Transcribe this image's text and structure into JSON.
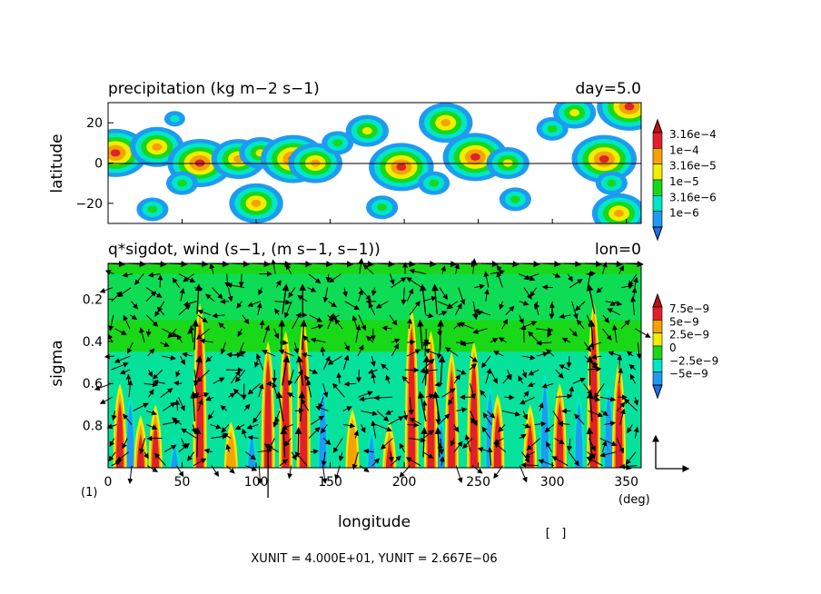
{
  "chart_data": [
    {
      "type": "heatmap",
      "title": "precipitation (kg m−2 s−1)",
      "annotation": "day=5.0",
      "ylabel": "latitude",
      "xlim": [
        0,
        360
      ],
      "ylim": [
        -30,
        30
      ],
      "yticks": [
        {
          "value": 20,
          "label": "20"
        },
        {
          "value": 0,
          "label": "0"
        },
        {
          "value": -20,
          "label": "−20"
        }
      ],
      "grid": false,
      "colorbar": {
        "position": "right",
        "levels": [
          {
            "label": "3.16e−4",
            "color": "#e0202a"
          },
          {
            "label": "1e−4",
            "color": "#f5a300"
          },
          {
            "label": "3.16e−5",
            "color": "#f2ee00"
          },
          {
            "label": "1e−5",
            "color": "#18d818"
          },
          {
            "label": "3.16e−6",
            "color": "#00e6c8"
          },
          {
            "label": "1e−6",
            "color": "#1e9bf0"
          }
        ],
        "top_color": "#c01010",
        "bottom_color": "#1e6ee8",
        "below_min_color": "#ffffff"
      },
      "cells": [
        {
          "lon": 5,
          "lat": 5,
          "value": "3.16e−4"
        },
        {
          "lon": 33,
          "lat": 8,
          "value": "1e−4"
        },
        {
          "lon": 62,
          "lat": 0,
          "value": "3.16e−4"
        },
        {
          "lon": 88,
          "lat": 2,
          "value": "1e−4"
        },
        {
          "lon": 103,
          "lat": 5,
          "value": "3.16e−5"
        },
        {
          "lon": 125,
          "lat": 2,
          "value": "3.16e−4"
        },
        {
          "lon": 140,
          "lat": 0,
          "value": "1e−4"
        },
        {
          "lon": 100,
          "lat": -20,
          "value": "1e−4"
        },
        {
          "lon": 30,
          "lat": -23,
          "value": "1e−5"
        },
        {
          "lon": 175,
          "lat": 16,
          "value": "3.16e−5"
        },
        {
          "lon": 198,
          "lat": -2,
          "value": "3.16e−4"
        },
        {
          "lon": 228,
          "lat": 20,
          "value": "1e−4"
        },
        {
          "lon": 248,
          "lat": 3,
          "value": "3.16e−4"
        },
        {
          "lon": 270,
          "lat": 0,
          "value": "3.16e−5"
        },
        {
          "lon": 300,
          "lat": 17,
          "value": "1e−5"
        },
        {
          "lon": 315,
          "lat": 25,
          "value": "3.16e−5"
        },
        {
          "lon": 335,
          "lat": 2,
          "value": "3.16e−4"
        },
        {
          "lon": 352,
          "lat": 28,
          "value": "3.16e−4"
        },
        {
          "lon": 345,
          "lat": -25,
          "value": "1e−4"
        },
        {
          "lon": 185,
          "lat": -22,
          "value": "1e−5"
        },
        {
          "lon": 275,
          "lat": -18,
          "value": "1e−5"
        },
        {
          "lon": 220,
          "lat": -10,
          "value": "1e−5"
        },
        {
          "lon": 340,
          "lat": -10,
          "value": "1e−5"
        },
        {
          "lon": 50,
          "lat": -10,
          "value": "1e−5"
        },
        {
          "lon": 155,
          "lat": 10,
          "value": "1e−5"
        },
        {
          "lon": 45,
          "lat": 22,
          "value": "3.16e−6"
        }
      ]
    },
    {
      "type": "heatmap",
      "title": "q*sigdot, wind (s−1, (m s−1, s−1))",
      "annotation": "lon=0",
      "xlabel": "longitude",
      "ylabel": "sigma",
      "xlim": [
        0,
        360
      ],
      "ylim": [
        1.0,
        0.03
      ],
      "xticks": [
        {
          "value": 0,
          "label": "0"
        },
        {
          "value": 50,
          "label": "50"
        },
        {
          "value": 100,
          "label": "100"
        },
        {
          "value": 150,
          "label": "150"
        },
        {
          "value": 200,
          "label": "200"
        },
        {
          "value": 250,
          "label": "250"
        },
        {
          "value": 300,
          "label": "300"
        },
        {
          "value": 350,
          "label": "350"
        }
      ],
      "yticks": [
        {
          "value": 0.2,
          "label": "0.2"
        },
        {
          "value": 0.4,
          "label": "0.4"
        },
        {
          "value": 0.6,
          "label": "0.6"
        },
        {
          "value": 0.8,
          "label": "0.8"
        }
      ],
      "x_unit": "(deg)",
      "y_unit": "(1)",
      "grid": false,
      "colorbar": {
        "position": "right",
        "levels": [
          {
            "label": "7.5e−9",
            "color": "#e0202a"
          },
          {
            "label": "5e−9",
            "color": "#f5a300"
          },
          {
            "label": "2.5e−9",
            "color": "#f2ee00"
          },
          {
            "label": "0",
            "color": "#18d818"
          },
          {
            "label": "−2.5e−9",
            "color": "#00e6c8"
          },
          {
            "label": "−5e−9",
            "color": "#1e9bf0"
          }
        ],
        "top_color": "#c01010",
        "bottom_color": "#1e6ee8"
      },
      "updraft_plumes": [
        {
          "lon": 8,
          "top_sigma": 0.6,
          "value": "7.5e−9"
        },
        {
          "lon": 22,
          "top_sigma": 0.75,
          "value": "7.5e−9"
        },
        {
          "lon": 32,
          "top_sigma": 0.7,
          "value": "7.5e−9"
        },
        {
          "lon": 62,
          "top_sigma": 0.22,
          "value": "7.5e−9"
        },
        {
          "lon": 83,
          "top_sigma": 0.78,
          "value": "5e−9"
        },
        {
          "lon": 108,
          "top_sigma": 0.4,
          "value": "7.5e−9"
        },
        {
          "lon": 120,
          "top_sigma": 0.35,
          "value": "7.5e−9"
        },
        {
          "lon": 132,
          "top_sigma": 0.3,
          "value": "7.5e−9"
        },
        {
          "lon": 165,
          "top_sigma": 0.72,
          "value": "5e−9"
        },
        {
          "lon": 190,
          "top_sigma": 0.78,
          "value": "7.5e−9"
        },
        {
          "lon": 205,
          "top_sigma": 0.25,
          "value": "7.5e−9"
        },
        {
          "lon": 218,
          "top_sigma": 0.35,
          "value": "7.5e−9"
        },
        {
          "lon": 232,
          "top_sigma": 0.45,
          "value": "7.5e−9"
        },
        {
          "lon": 247,
          "top_sigma": 0.4,
          "value": "7.5e−9"
        },
        {
          "lon": 263,
          "top_sigma": 0.65,
          "value": "7.5e−9"
        },
        {
          "lon": 285,
          "top_sigma": 0.7,
          "value": "7.5e−9"
        },
        {
          "lon": 305,
          "top_sigma": 0.6,
          "value": "7.5e−9"
        },
        {
          "lon": 328,
          "top_sigma": 0.22,
          "value": "7.5e−9"
        },
        {
          "lon": 345,
          "top_sigma": 0.5,
          "value": "7.5e−9"
        }
      ],
      "downdraft_plumes": [
        {
          "lon": 15,
          "top_sigma": 0.65,
          "value": "−5e−9"
        },
        {
          "lon": 45,
          "top_sigma": 0.85,
          "value": "−5e−9"
        },
        {
          "lon": 97,
          "top_sigma": 0.8,
          "value": "−5e−9"
        },
        {
          "lon": 145,
          "top_sigma": 0.6,
          "value": "−5e−9"
        },
        {
          "lon": 178,
          "top_sigma": 0.8,
          "value": "−5e−9"
        },
        {
          "lon": 225,
          "top_sigma": 0.75,
          "value": "−5e−9"
        },
        {
          "lon": 258,
          "top_sigma": 0.6,
          "value": "−5e−9"
        },
        {
          "lon": 295,
          "top_sigma": 0.55,
          "value": "−5e−9"
        },
        {
          "lon": 318,
          "top_sigma": 0.65,
          "value": "−5e−9"
        },
        {
          "lon": 338,
          "top_sigma": 0.6,
          "value": "−5e−9"
        }
      ],
      "strong_wind_columns_lon": [
        60,
        118,
        130,
        213,
        223,
        327
      ],
      "reference_vector": {
        "x_unit": "4.000E+01",
        "y_unit": "2.667E−06"
      }
    }
  ],
  "footer": {
    "unit_text": "XUNIT = 4.000E+01, YUNIT = 2.667E−06",
    "bracket_text": "[   ]"
  }
}
